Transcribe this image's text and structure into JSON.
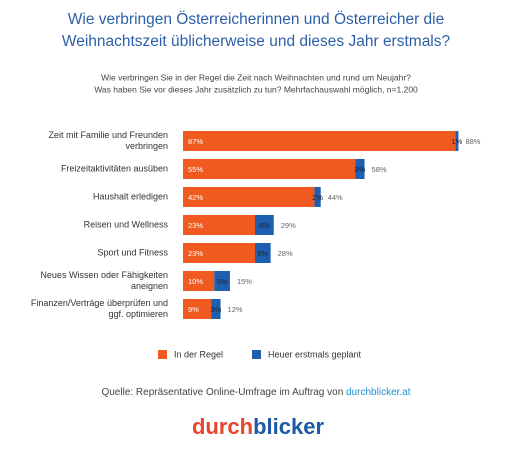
{
  "chart_data": {
    "type": "stacked-bar-horizontal",
    "title": [
      "Wie verbringen Österreicherinnen und Österreicher die",
      "Weihnachtszeit üblicherweise und dieses Jahr erstmals?"
    ],
    "subtitle": [
      "Wie verbringen Sie in der Regel die Zeit nach Weihnachten und rund um Neujahr?",
      "Was haben Sie vor dieses Jahr zusätzlich zu tun? Mehrfachauswahl möglich, n=1.200"
    ],
    "categories": [
      "Zeit mit Familie und Freunden verbringen",
      "Freizeitaktivitäten ausüben",
      "Haushalt erledigen",
      "Reisen und Wellness",
      "Sport und Fitness",
      "Neues Wissen oder Fähigkeiten aneignen",
      "Finanzen/Verträge überprüfen und ggf. optimieren"
    ],
    "series": [
      {
        "name": "In der Regel",
        "color": "#f05a1e",
        "values": [
          87,
          55,
          42,
          23,
          23,
          10,
          9
        ],
        "value_labels": [
          "87%",
          "55%",
          "42%",
          "23%",
          "23%",
          "10%",
          "9%"
        ]
      },
      {
        "name": "Heuer erstmals geplant",
        "color": "#1f5fb0",
        "values": [
          1,
          3,
          2,
          6,
          5,
          5,
          3
        ],
        "value_labels": [
          "1%",
          "3%",
          "2%",
          "6%",
          "5%",
          "5%",
          "3%"
        ]
      }
    ],
    "totals": [
      88,
      58,
      44,
      29,
      28,
      15,
      12
    ],
    "total_labels": [
      "88%",
      "58%",
      "44%",
      "29%",
      "28%",
      "15%",
      "12%"
    ],
    "source_text": "Quelle: Repräsentative Online-Umfrage im Auftrag von",
    "source_link": "durchblicker.at",
    "logo": [
      "durch",
      "blicker"
    ]
  }
}
